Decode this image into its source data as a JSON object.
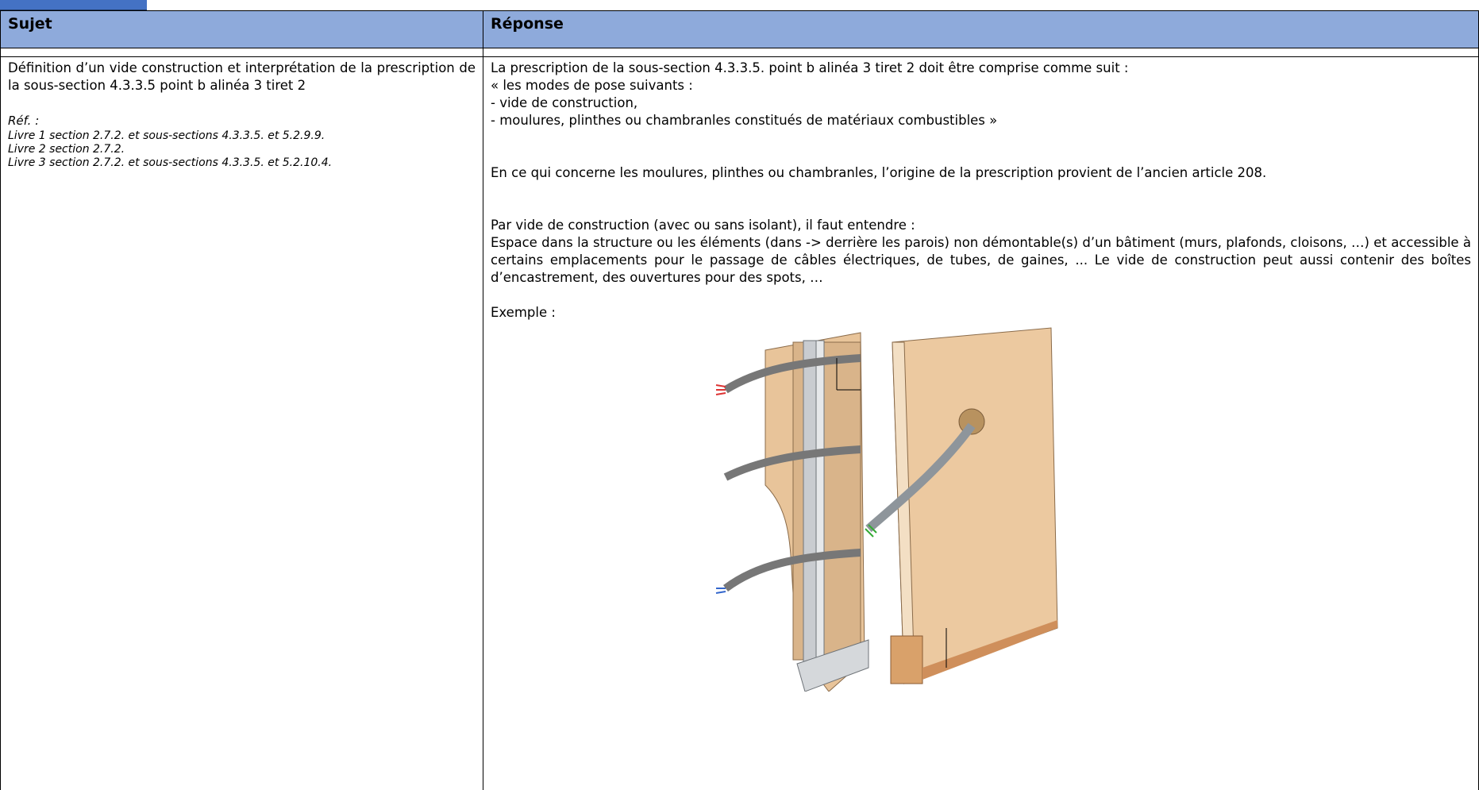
{
  "table": {
    "headers": [
      "Sujet",
      "Réponse"
    ],
    "subject": {
      "text": "Définition d’un vide construction et interprétation de la prescription de la sous-section 4.3.3.5 point b alinéa 3 tiret 2",
      "ref_label": "Réf. :",
      "refs": [
        "Livre 1 section 2.7.2. et sous-sections 4.3.3.5. et 5.2.9.9.",
        "Livre 2 section 2.7.2.",
        "Livre 3 section 2.7.2. et sous-sections 4.3.3.5. et 5.2.10.4."
      ]
    },
    "answer": {
      "intro": "La prescription de la sous-section 4.3.3.5. point b alinéa 3 tiret 2 doit être comprise comme suit :",
      "quote": [
        "« les modes de pose suivants :",
        "- vide de construction,",
        "- moulures, plinthes ou chambranles constitués de matériaux combustibles »"
      ],
      "origin": "En ce qui concerne les moulures, plinthes ou chambranles, l’origine de la prescription provient de l’ancien article 208.",
      "definition_intro": "Par vide de construction (avec ou sans isolant), il faut entendre :",
      "definition": "Espace dans la structure ou les éléments (dans -> derrière les parois) non démontable(s) d’un bâtiment (murs, plafonds, cloisons, …) et accessible à certains emplacements pour le passage de câbles électriques, de tubes, de gaines, ... Le vide de construction peut aussi contenir des boîtes d’encastrement, des ouvertures pour des spots, …",
      "example_label": "Exemple :"
    }
  }
}
